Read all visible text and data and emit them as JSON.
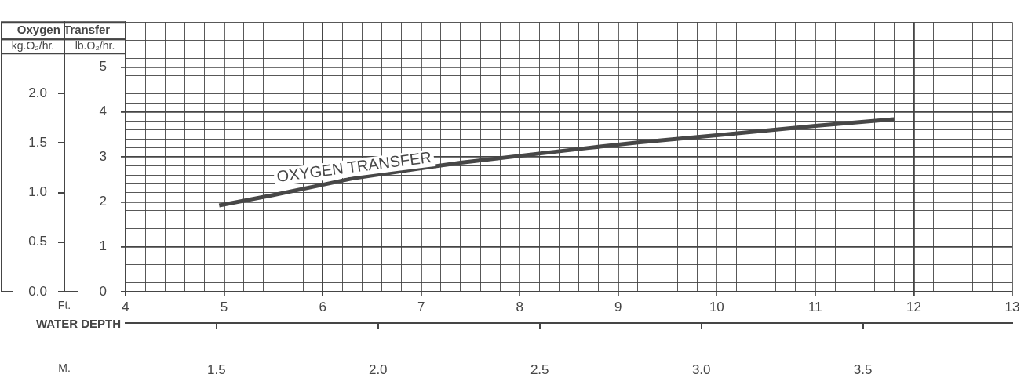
{
  "chart_data": {
    "type": "line",
    "title": "Oxygen Transfer",
    "ylabel": "lb.O₂/hr.",
    "y2label": "kg.O₂/hr.",
    "xlabel": "Ft.",
    "x2label": "M.",
    "annotations": [
      "WATER DEPTH"
    ],
    "x": [
      4.95,
      5.5,
      6.0,
      6.3,
      7.0,
      7.4,
      8.3,
      8.7,
      9.2,
      10.0,
      11.0,
      11.8
    ],
    "series": [
      {
        "name": "OXYGEN TRANSFER",
        "color": "#474747",
        "values": [
          1.92,
          2.15,
          2.38,
          2.52,
          2.75,
          2.87,
          3.1,
          3.2,
          3.32,
          3.48,
          3.69,
          3.84
        ]
      }
    ],
    "xlim": [
      4,
      13
    ],
    "ylim": [
      0,
      6
    ],
    "y2lim": [
      0,
      2.72
    ],
    "x2lim": [
      1.219,
      3.962
    ],
    "xticks": [
      4,
      {
        "value": 4.2,
        "label": null
      },
      {
        "value": 4.4,
        "label": null
      },
      {
        "value": 4.6,
        "label": null
      },
      {
        "value": 4.8,
        "label": null
      },
      5,
      {
        "value": 5.2,
        "label": null
      },
      {
        "value": 5.4,
        "label": null
      },
      {
        "value": 5.6,
        "label": null
      },
      {
        "value": 5.8,
        "label": null
      },
      6,
      {
        "value": 6.2,
        "label": null
      },
      {
        "value": 6.4,
        "label": null
      },
      {
        "value": 6.6,
        "label": null
      },
      {
        "value": 6.8,
        "label": null
      },
      7,
      {
        "value": 7.2,
        "label": null
      },
      {
        "value": 7.4,
        "label": null
      },
      {
        "value": 7.6,
        "label": null
      },
      {
        "value": 7.8,
        "label": null
      },
      8,
      {
        "value": 8.2,
        "label": null
      },
      {
        "value": 8.4,
        "label": null
      },
      {
        "value": 8.6,
        "label": null
      },
      {
        "value": 8.8,
        "label": null
      },
      9,
      {
        "value": 9.2,
        "label": null
      },
      {
        "value": 9.4,
        "label": null
      },
      {
        "value": 9.6,
        "label": null
      },
      {
        "value": 9.8,
        "label": null
      },
      10,
      {
        "value": 10.2,
        "label": null
      },
      {
        "value": 10.4,
        "label": null
      },
      {
        "value": 10.6,
        "label": null
      },
      {
        "value": 10.8,
        "label": null
      },
      11,
      {
        "value": 11.2,
        "label": null
      },
      {
        "value": 11.4,
        "label": null
      },
      {
        "value": 11.6,
        "label": null
      },
      {
        "value": 11.8,
        "label": null
      },
      12,
      {
        "value": 12.2,
        "label": null
      },
      {
        "value": 12.4,
        "label": null
      },
      {
        "value": 12.6,
        "label": null
      },
      {
        "value": 12.8,
        "label": null
      },
      13
    ],
    "yticks": [
      0,
      {
        "value": 0.2,
        "label": null
      },
      {
        "value": 0.4,
        "label": null
      },
      {
        "value": 0.6,
        "label": null
      },
      {
        "value": 0.8,
        "label": null
      },
      1,
      {
        "value": 1.2,
        "label": null
      },
      {
        "value": 1.4,
        "label": null
      },
      {
        "value": 1.6,
        "label": null
      },
      {
        "value": 1.8,
        "label": null
      },
      2,
      {
        "value": 2.2,
        "label": null
      },
      {
        "value": 2.4,
        "label": null
      },
      {
        "value": 2.6,
        "label": null
      },
      {
        "value": 2.8,
        "label": null
      },
      3,
      {
        "value": 3.2,
        "label": null
      },
      {
        "value": 3.4,
        "label": null
      },
      {
        "value": 3.6,
        "label": null
      },
      {
        "value": 3.8,
        "label": null
      },
      4,
      {
        "value": 4.2,
        "label": null
      },
      {
        "value": 4.4,
        "label": null
      },
      {
        "value": 4.6,
        "label": null
      },
      {
        "value": 4.8,
        "label": null
      },
      5,
      {
        "value": 5.2,
        "label": null
      },
      {
        "value": 5.4,
        "label": null
      },
      {
        "value": 5.6,
        "label": null
      },
      {
        "value": 5.8,
        "label": null
      },
      {
        "value": 6,
        "label": null
      }
    ],
    "y2ticks": [
      {
        "value": 0,
        "label": "0.0"
      },
      0.5,
      {
        "value": 1,
        "label": "1.0"
      },
      1.5,
      {
        "value": 2,
        "label": "2.0"
      }
    ],
    "x2ticks": [
      1.5,
      {
        "value": 2,
        "label": "2.0"
      },
      2.5,
      {
        "value": 3,
        "label": "3.0"
      },
      3.5
    ],
    "grid": true,
    "legend": false
  }
}
